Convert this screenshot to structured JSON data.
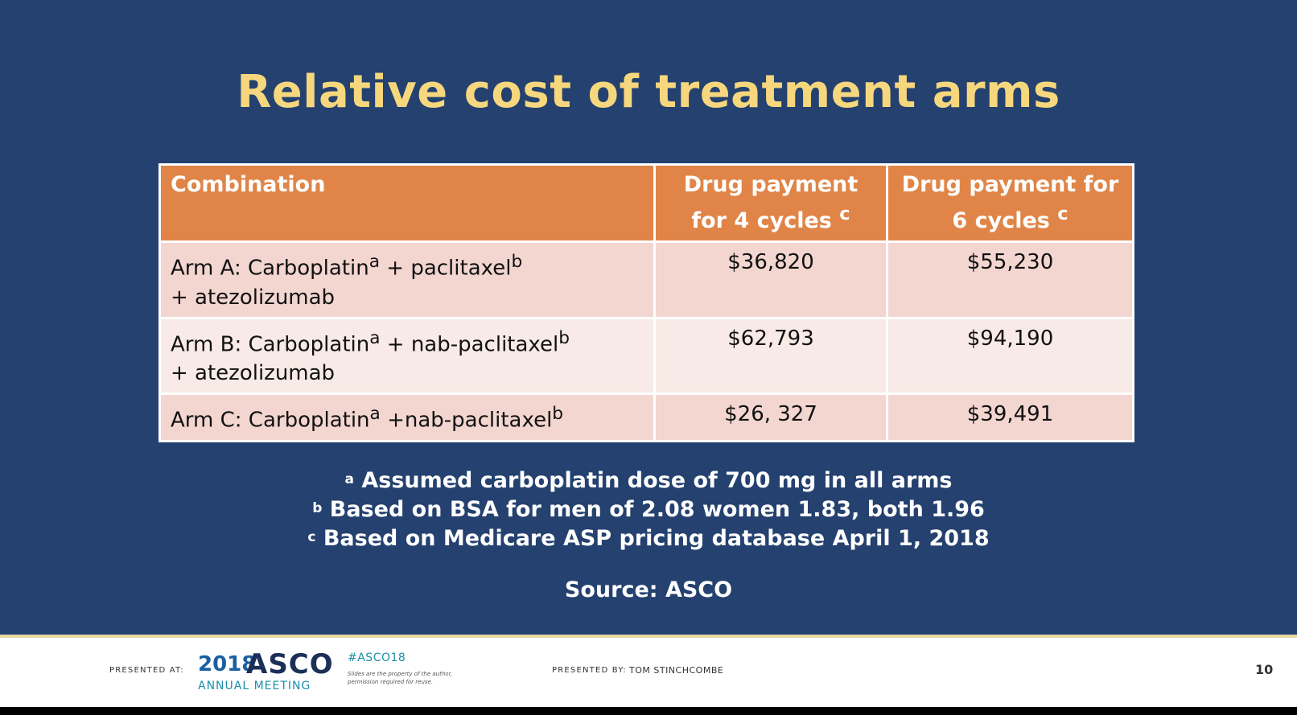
{
  "title": "Relative cost of treatment arms",
  "table": {
    "headers": {
      "combination": "Combination",
      "four_cycles": "Drug payment for 4 cycles",
      "four_cycles_sup": "c",
      "six_cycles": "Drug payment for 6 cycles",
      "six_cycles_sup": "c"
    },
    "rows": [
      {
        "arm": "Arm A: Carboplatin",
        "sup_a": "a",
        "mid": " + paclitaxel",
        "sup_b": "b",
        "line2": "+ atezolizumab",
        "four": "$36,820",
        "six": "$55,230"
      },
      {
        "arm": "Arm B: Carboplatin",
        "sup_a": "a",
        "mid": " + nab-paclitaxel",
        "sup_b": "b",
        "line2": "+ atezolizumab",
        "four": "$62,793",
        "six": "$94,190"
      },
      {
        "arm": "Arm C: Carboplatin",
        "sup_a": "a",
        "mid": " +nab-paclitaxel",
        "sup_b": "b",
        "line2": "",
        "four": "$26, 327",
        "six": "$39,491"
      }
    ]
  },
  "footnotes": [
    {
      "marker": "a",
      "text": " Assumed carboplatin dose of 700 mg in all arms"
    },
    {
      "marker": "b",
      "text": " Based on BSA for men of 2.08 women 1.83, both 1.96"
    },
    {
      "marker": "c",
      "text": " Based on Medicare ASP pricing database April 1, 2018"
    }
  ],
  "source": "Source: ASCO",
  "footer": {
    "presented_at": "PRESENTED AT:",
    "year": "2018",
    "org": "ASCO",
    "meeting": "ANNUAL MEETING",
    "hashtag": "#ASCO18",
    "disclaimer": "Slides are the property of the author, permission required for reuse.",
    "presented_by": "PRESENTED BY:",
    "presenter": "TOM STINCHCOMBE",
    "page": "10"
  },
  "colors": {
    "background": "#24416f",
    "title": "#f6d77d",
    "header": "#e08547",
    "row_dark": "#f2d6cf",
    "row_light": "#f8eae6"
  }
}
